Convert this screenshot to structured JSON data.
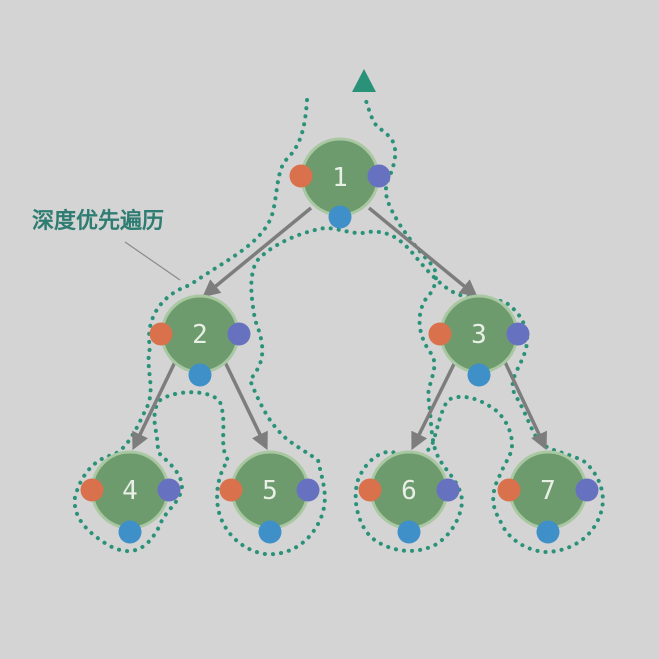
{
  "diagram": {
    "label": "深度优先遍历",
    "nodes": [
      {
        "id": "1",
        "text": "1"
      },
      {
        "id": "2",
        "text": "2"
      },
      {
        "id": "3",
        "text": "3"
      },
      {
        "id": "4",
        "text": "4"
      },
      {
        "id": "5",
        "text": "5"
      },
      {
        "id": "6",
        "text": "6"
      },
      {
        "id": "7",
        "text": "7"
      }
    ],
    "edges": [
      {
        "from": "1",
        "to": "2"
      },
      {
        "from": "1",
        "to": "3"
      },
      {
        "from": "2",
        "to": "4"
      },
      {
        "from": "2",
        "to": "5"
      },
      {
        "from": "3",
        "to": "6"
      },
      {
        "from": "3",
        "to": "7"
      }
    ],
    "colors": {
      "background": "#d4d4d4",
      "node_fill": "#6e9b6e",
      "node_ring": "#a9c8a2",
      "edge": "#7d7d7d",
      "path": "#2a9278",
      "label": "#2f7d72",
      "preorder_dot": "#d9714c",
      "inorder_dot": "#3f8fc8",
      "postorder_dot": "#6672bf"
    }
  }
}
